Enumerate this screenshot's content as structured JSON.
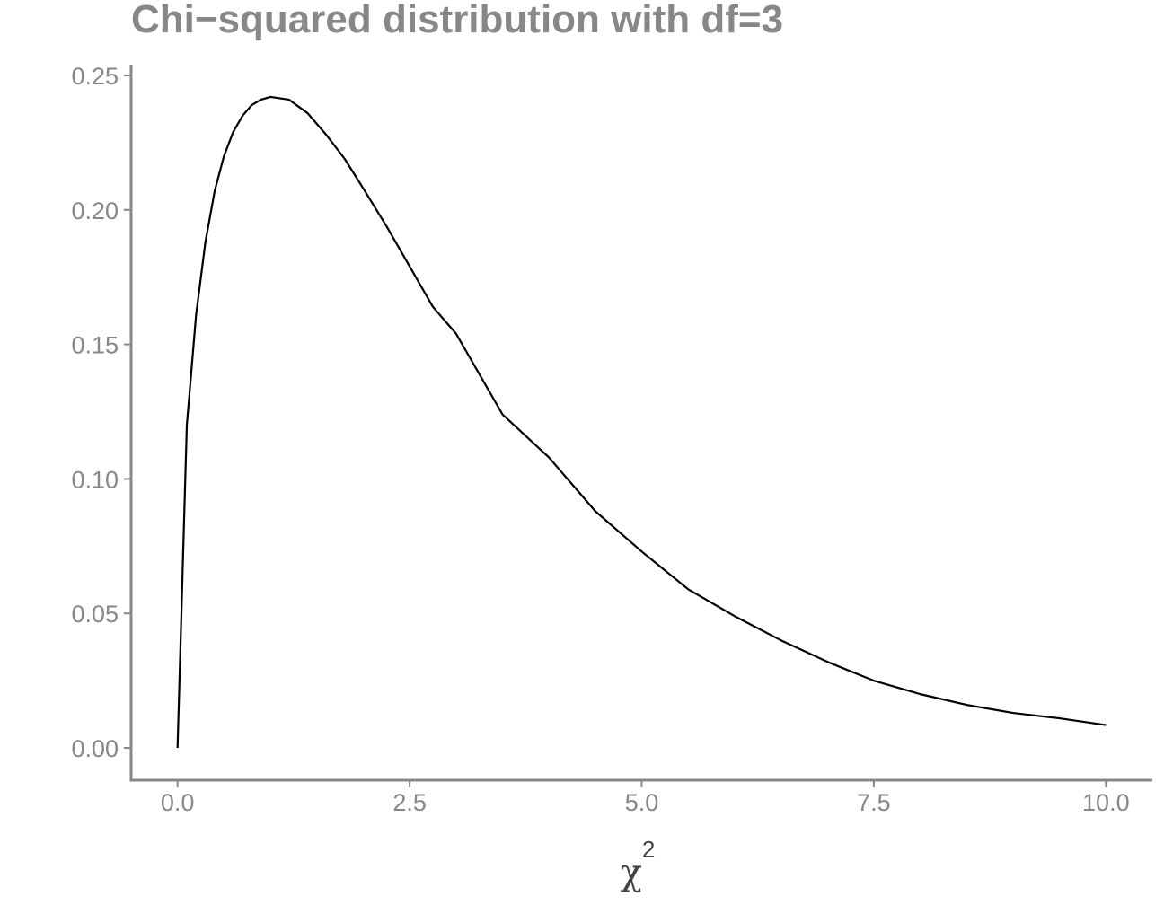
{
  "chart_data": {
    "type": "line",
    "title": "Chi−squared distribution with df=3",
    "xlabel": "χ",
    "xlabel_superscript": "2",
    "ylabel": "",
    "xlim": [
      -0.5,
      10.5
    ],
    "ylim": [
      -0.012,
      0.254
    ],
    "x_ticks": [
      0,
      2.5,
      5,
      7.5,
      10
    ],
    "x_tick_labels": [
      "0.0",
      "2.5",
      "5.0",
      "7.5",
      "10.0"
    ],
    "y_ticks": [
      0,
      0.05,
      0.1,
      0.15,
      0.2,
      0.25
    ],
    "y_tick_labels": [
      "0.00",
      "0.05",
      "0.10",
      "0.15",
      "0.20",
      "0.25"
    ],
    "grid": false,
    "line_color": "#000000",
    "axis_color": "#878787",
    "series": [
      {
        "x": [
          0,
          0.1,
          0.2,
          0.3,
          0.4,
          0.5,
          0.6,
          0.7,
          0.8,
          0.9,
          1.0,
          1.2,
          1.4,
          1.6,
          1.8,
          2.0,
          2.25,
          2.5,
          2.75,
          3.0,
          3.5,
          4.0,
          4.5,
          5.0,
          5.5,
          6.0,
          6.5,
          7.0,
          7.5,
          8.0,
          8.5,
          9.0,
          9.5,
          10.0
        ],
        "values": [
          0,
          0.12,
          0.161,
          0.188,
          0.207,
          0.22,
          0.229,
          0.235,
          0.239,
          0.241,
          0.242,
          0.241,
          0.236,
          0.228,
          0.219,
          0.208,
          0.194,
          0.179,
          0.164,
          0.154,
          0.124,
          0.108,
          0.088,
          0.073,
          0.059,
          0.049,
          0.04,
          0.032,
          0.025,
          0.02,
          0.016,
          0.013,
          0.011,
          0.0085
        ]
      }
    ]
  }
}
